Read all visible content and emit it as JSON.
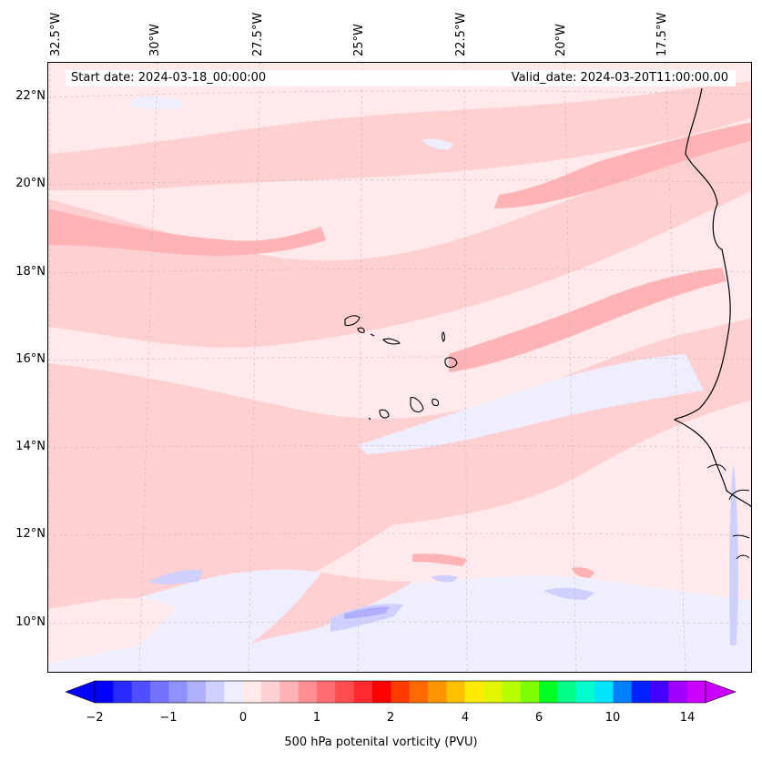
{
  "map": {
    "start_date": "Start date: 2024-03-18_00:00:00",
    "valid_date": "Valid_date: 2024-03-20T11:00:00.00",
    "lon_labels": [
      "32.5°W",
      "30°W",
      "27.5°W",
      "25°W",
      "22.5°W",
      "20°W",
      "17.5°W"
    ],
    "lat_labels": [
      "22°N",
      "20°N",
      "18°N",
      "16°N",
      "14°N",
      "12°N",
      "10°N"
    ],
    "region": "Cabo Verde / West African coast"
  },
  "colorbar": {
    "label": "500 hPa potenital vorticity (PVU)",
    "tick_labels": [
      "−2",
      "−1",
      "0",
      "1",
      "2",
      "4",
      "6",
      "10",
      "14"
    ],
    "colors": [
      "#0000ff",
      "#2a2aff",
      "#4f4fff",
      "#7373ff",
      "#9090ff",
      "#b0b0ff",
      "#d0d0ff",
      "#eeeeff",
      "#ffe9ea",
      "#ffd0d2",
      "#ffb3b5",
      "#ff8f92",
      "#ff6d70",
      "#ff4c4f",
      "#ff2a2d",
      "#ff0000",
      "#ff3b00",
      "#ff6a00",
      "#ff9500",
      "#ffc000",
      "#ffea00",
      "#e4f500",
      "#b8ff00",
      "#7dff00",
      "#00ff22",
      "#00ff88",
      "#00ffcc",
      "#00e5ff",
      "#0080ff",
      "#0022ff",
      "#4400ff",
      "#a000ff",
      "#cc00ff"
    ]
  }
}
